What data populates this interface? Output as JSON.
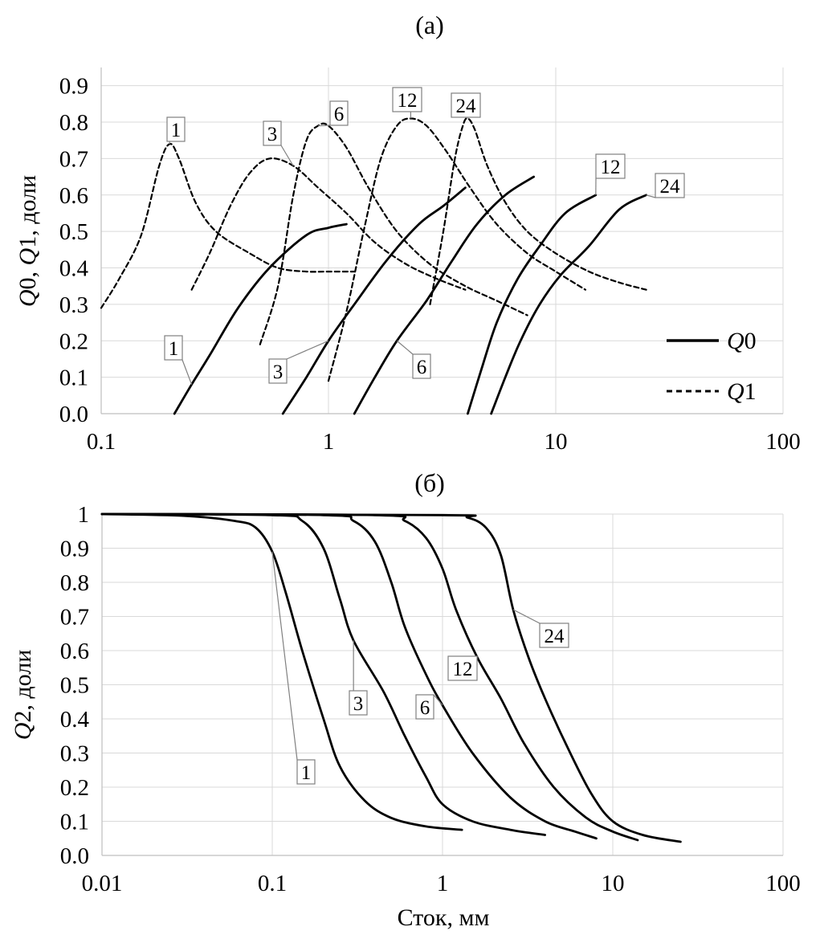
{
  "chart_data": [
    {
      "type": "line",
      "title": "(а)",
      "xlabel": "",
      "ylabel_parts": [
        "Q",
        "0, ",
        "Q",
        "1, доли"
      ],
      "x_scale": "log",
      "xlim": [
        0.1,
        100
      ],
      "ylim": [
        0.0,
        0.95
      ],
      "x_tick_labels": [
        "0.1",
        "1",
        "10",
        "100"
      ],
      "x_tick_values": [
        0.1,
        1,
        10,
        100
      ],
      "y_tick_labels": [
        "0.0",
        "0.1",
        "0.2",
        "0.3",
        "0.4",
        "0.5",
        "0.6",
        "0.7",
        "0.8",
        "0.9"
      ],
      "y_tick_values": [
        0,
        0.1,
        0.2,
        0.3,
        0.4,
        0.5,
        0.6,
        0.7,
        0.8,
        0.9
      ],
      "grid": true,
      "legend": {
        "position": "bottom-right",
        "entries": [
          {
            "italic": "Q",
            "rest": "0",
            "style": "solid"
          },
          {
            "italic": "Q",
            "rest": "1",
            "style": "dashed"
          }
        ]
      },
      "series": [
        {
          "label": "1",
          "kind": "Q0",
          "style": "solid",
          "x": [
            0.21,
            0.25,
            0.3,
            0.4,
            0.55,
            0.8,
            1.0,
            1.2
          ],
          "y": [
            0.0,
            0.08,
            0.16,
            0.29,
            0.4,
            0.49,
            0.51,
            0.52
          ]
        },
        {
          "label": "3",
          "kind": "Q0",
          "style": "solid",
          "x": [
            0.63,
            0.8,
            1.0,
            1.3,
            1.8,
            2.5,
            3.2,
            4.0
          ],
          "y": [
            0.0,
            0.1,
            0.2,
            0.3,
            0.42,
            0.52,
            0.57,
            0.62
          ]
        },
        {
          "label": "6",
          "kind": "Q0",
          "style": "solid",
          "x": [
            1.3,
            1.6,
            2.0,
            2.7,
            3.5,
            4.5,
            6.0,
            8.0
          ],
          "y": [
            0.0,
            0.1,
            0.2,
            0.31,
            0.42,
            0.52,
            0.6,
            0.65
          ]
        },
        {
          "label": "12",
          "kind": "Q0",
          "style": "solid",
          "x": [
            4.1,
            4.7,
            5.5,
            6.8,
            8.5,
            11.0,
            15.0
          ],
          "y": [
            0.0,
            0.12,
            0.25,
            0.37,
            0.46,
            0.55,
            0.6
          ]
        },
        {
          "label": "24",
          "kind": "Q0",
          "style": "solid",
          "x": [
            5.2,
            6.0,
            7.0,
            8.5,
            10.5,
            14.0,
            19.0,
            25.0
          ],
          "y": [
            0.0,
            0.1,
            0.2,
            0.3,
            0.38,
            0.46,
            0.56,
            0.6
          ]
        },
        {
          "label": "1",
          "kind": "Q1",
          "style": "dashed",
          "x": [
            0.1,
            0.12,
            0.15,
            0.18,
            0.2,
            0.22,
            0.26,
            0.32,
            0.45,
            0.6,
            0.8,
            1.0,
            1.3
          ],
          "y": [
            0.29,
            0.37,
            0.49,
            0.68,
            0.74,
            0.7,
            0.58,
            0.5,
            0.44,
            0.4,
            0.39,
            0.39,
            0.39
          ]
        },
        {
          "label": "3",
          "kind": "Q1",
          "style": "dashed",
          "x": [
            0.25,
            0.3,
            0.37,
            0.45,
            0.55,
            0.7,
            0.9,
            1.2,
            1.6,
            2.2,
            3.0,
            4.0
          ],
          "y": [
            0.34,
            0.44,
            0.57,
            0.66,
            0.7,
            0.68,
            0.62,
            0.55,
            0.47,
            0.41,
            0.37,
            0.34
          ]
        },
        {
          "label": "6",
          "kind": "Q1",
          "style": "dashed",
          "x": [
            0.5,
            0.6,
            0.7,
            0.8,
            0.9,
            1.0,
            1.2,
            1.5,
            2.0,
            2.8,
            4.0,
            5.5,
            7.5
          ],
          "y": [
            0.19,
            0.35,
            0.6,
            0.75,
            0.79,
            0.79,
            0.73,
            0.62,
            0.5,
            0.41,
            0.35,
            0.31,
            0.27
          ]
        },
        {
          "label": "12",
          "kind": "Q1",
          "style": "dashed",
          "x": [
            1.0,
            1.2,
            1.45,
            1.7,
            2.0,
            2.3,
            2.7,
            3.3,
            4.2,
            5.5,
            7.5,
            10.0,
            13.5
          ],
          "y": [
            0.09,
            0.28,
            0.52,
            0.7,
            0.79,
            0.81,
            0.79,
            0.72,
            0.62,
            0.52,
            0.44,
            0.39,
            0.34
          ]
        },
        {
          "label": "24",
          "kind": "Q1",
          "style": "dashed",
          "x": [
            2.8,
            3.2,
            3.6,
            3.9,
            4.1,
            4.4,
            5.0,
            6.0,
            7.5,
            10.0,
            14.0,
            19.0,
            25.0
          ],
          "y": [
            0.3,
            0.5,
            0.7,
            0.79,
            0.81,
            0.78,
            0.68,
            0.58,
            0.5,
            0.44,
            0.39,
            0.36,
            0.34
          ]
        }
      ],
      "callouts": [
        {
          "text": "1",
          "series": "Q1-1"
        },
        {
          "text": "3",
          "series": "Q1-3"
        },
        {
          "text": "6",
          "series": "Q1-6"
        },
        {
          "text": "12",
          "series": "Q1-12"
        },
        {
          "text": "24",
          "series": "Q1-24"
        },
        {
          "text": "1",
          "series": "Q0-1"
        },
        {
          "text": "3",
          "series": "Q0-3"
        },
        {
          "text": "6",
          "series": "Q0-6"
        },
        {
          "text": "12",
          "series": "Q0-12"
        },
        {
          "text": "24",
          "series": "Q0-24"
        }
      ]
    },
    {
      "type": "line",
      "title": "(б)",
      "xlabel": "Сток, мм",
      "ylabel_parts": [
        "Q",
        "2, доли"
      ],
      "x_scale": "log",
      "xlim": [
        0.01,
        100
      ],
      "ylim": [
        0.0,
        1.0
      ],
      "x_tick_labels": [
        "0.01",
        "0.1",
        "1",
        "10",
        "100"
      ],
      "x_tick_values": [
        0.01,
        0.1,
        1,
        10,
        100
      ],
      "y_tick_labels": [
        "0.0",
        "0.1",
        "0.2",
        "0.3",
        "0.4",
        "0.5",
        "0.6",
        "0.7",
        "0.8",
        "0.9",
        "1"
      ],
      "y_tick_values": [
        0,
        0.1,
        0.2,
        0.3,
        0.4,
        0.5,
        0.6,
        0.7,
        0.8,
        0.9,
        1.0
      ],
      "grid": true,
      "series": [
        {
          "label": "1",
          "style": "solid",
          "x": [
            0.01,
            0.03,
            0.06,
            0.08,
            0.1,
            0.12,
            0.15,
            0.2,
            0.25,
            0.35,
            0.5,
            0.8,
            1.3
          ],
          "y": [
            1.0,
            0.995,
            0.98,
            0.96,
            0.89,
            0.77,
            0.6,
            0.4,
            0.26,
            0.16,
            0.11,
            0.085,
            0.075
          ]
        },
        {
          "label": "3",
          "style": "solid",
          "x": [
            0.01,
            0.1,
            0.15,
            0.2,
            0.25,
            0.3,
            0.45,
            0.6,
            0.8,
            1.0,
            1.5,
            2.5,
            4.0
          ],
          "y": [
            1.0,
            0.997,
            0.98,
            0.9,
            0.75,
            0.63,
            0.48,
            0.35,
            0.23,
            0.15,
            0.1,
            0.075,
            0.06
          ]
        },
        {
          "label": "6",
          "style": "solid",
          "x": [
            0.01,
            0.2,
            0.3,
            0.4,
            0.5,
            0.6,
            0.8,
            1.0,
            1.5,
            2.5,
            4.0,
            6.0,
            8.0
          ],
          "y": [
            1.0,
            0.997,
            0.98,
            0.92,
            0.8,
            0.67,
            0.53,
            0.44,
            0.3,
            0.17,
            0.1,
            0.07,
            0.05
          ]
        },
        {
          "label": "12",
          "style": "solid",
          "x": [
            0.01,
            0.4,
            0.6,
            0.8,
            1.0,
            1.2,
            1.6,
            2.2,
            3.0,
            4.5,
            7.0,
            10.0,
            14.0
          ],
          "y": [
            1.0,
            0.997,
            0.98,
            0.93,
            0.84,
            0.72,
            0.58,
            0.46,
            0.33,
            0.2,
            0.11,
            0.07,
            0.045
          ]
        },
        {
          "label": "24",
          "style": "solid",
          "x": [
            0.01,
            1.0,
            1.4,
            1.8,
            2.2,
            2.6,
            3.2,
            4.0,
            5.5,
            7.5,
            10.0,
            15.0,
            25.0
          ],
          "y": [
            1.0,
            0.997,
            0.99,
            0.96,
            0.88,
            0.72,
            0.58,
            0.46,
            0.31,
            0.18,
            0.1,
            0.06,
            0.04
          ]
        }
      ],
      "callouts": [
        {
          "text": "1",
          "series": "1"
        },
        {
          "text": "3",
          "series": "3"
        },
        {
          "text": "6",
          "series": "6"
        },
        {
          "text": "12",
          "series": "12"
        },
        {
          "text": "24",
          "series": "24"
        }
      ]
    }
  ]
}
